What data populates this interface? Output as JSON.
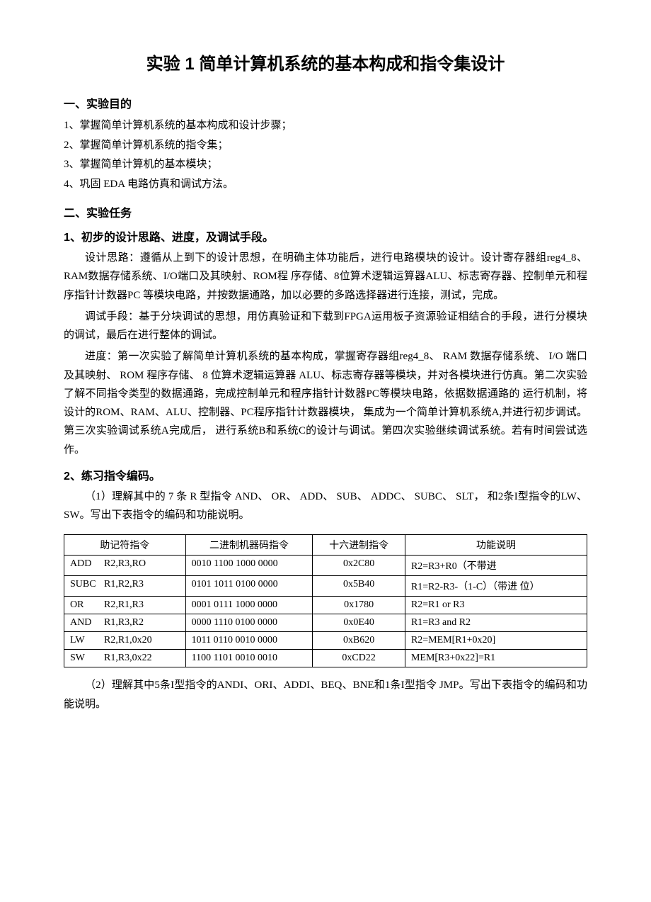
{
  "title": "实验 1 简单计算机系统的基本构成和指令集设计",
  "sec1_head": "一、实验目的",
  "sec1_items": [
    "1、掌握简单计算机系统的基本构成和设计步骤；",
    "2、掌握简单计算机系统的指令集；",
    "3、掌握简单计算机的基本模块；",
    "4、巩固 EDA 电路仿真和调试方法。"
  ],
  "sec2_head": "二、实验任务",
  "task1_head": "1、初步的设计思路、进度，及调试手段。",
  "task1_p1": "设计思路：遵循从上到下的设计思想，在明确主体功能后，进行电路模块的设计。设计寄存器组reg4_8、RAM数据存储系统、I/O端口及其映射、ROM程 序存储、8位算术逻辑运算器ALU、标志寄存器、控制单元和程序指针计数器PC 等模块电路，并按数据通路，加以必要的多路选择器进行连接，测试，完成。",
  "task1_p2": "调试手段：基于分块调试的思想，用仿真验证和下载到FPGA运用板子资源验证相结合的手段，进行分模块的调试，最后在进行整体的调试。",
  "task1_p3": "进度：第一次实验了解简单计算机系统的基本构成，掌握寄存器组reg4_8、 RAM 数据存储系统、 I/O 端口及其映射、 ROM 程序存储、 8 位算术逻辑运算器 ALU、标志寄存器等模块，并对各模块进行仿真。第二次实验了解不同指令类型的数据通路，完成控制单元和程序指针计数器PC等模块电路，依据数据通路的 运行机制，将设计的ROM、RAM、ALU、控制器、PC程序指针计数器模块， 集成为一个简单计算机系统A,并进行初步调试。第三次实验调试系统A完成后， 进行系统B和系统C的设计与调试。第四次实验继续调试系统。若有时间尝试选 作。",
  "task2_head": "2、练习指令编码。",
  "task2_p1": "（1）理解其中的  7 条  R 型指令 AND、 OR、 ADD、 SUB、 ADDC、 SUBC、 SLT， 和2条I型指令的LW、SW。写出下表指令的编码和功能说明。",
  "table1": {
    "columns": [
      "助记符指令",
      "二进制机器码指令",
      "十六进制指令",
      "功能说明"
    ],
    "rows": [
      {
        "mn_op": "ADD",
        "mn_args": "R2,R3,RO",
        "bin": "0010 1100 1000 0000",
        "hex": "0x2C80",
        "fn": "R2=R3+R0（不带进"
      },
      {
        "mn_op": "SUBC",
        "mn_args": "R1,R2,R3",
        "bin": "0101 1011 0100 0000",
        "hex": "0x5B40",
        "fn": "R1=R2-R3-（1-C）（带进 位）"
      },
      {
        "mn_op": "OR",
        "mn_args": "R2,R1,R3",
        "bin": "0001 0111 1000 0000",
        "hex": "0x1780",
        "fn": "R2=R1 or R3"
      },
      {
        "mn_op": "AND",
        "mn_args": "R1,R3,R2",
        "bin": "0000 1110 0100 0000",
        "hex": "0x0E40",
        "fn": "R1=R3 and R2"
      },
      {
        "mn_op": "LW",
        "mn_args": "R2,R1,0x20",
        "bin": "1011 0110 0010 0000",
        "hex": "0xB620",
        "fn": "R2=MEM[R1+0x20]"
      },
      {
        "mn_op": "SW",
        "mn_args": "R1,R3,0x22",
        "bin": "1100 1101 0010 0010",
        "hex": "0xCD22",
        "fn": "MEM[R3+0x22]=R1"
      }
    ]
  },
  "task2_p2": "（2）理解其中5条I型指令的ANDI、ORI、ADDI、BEQ、BNE和1条I型指令 JMP。写出下表指令的编码和功能说明。"
}
